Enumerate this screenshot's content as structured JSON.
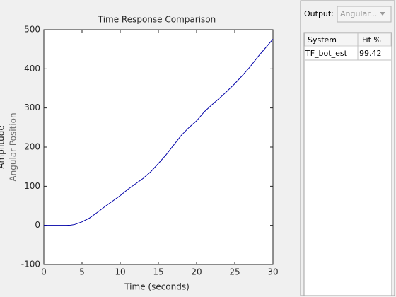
{
  "chart_data": {
    "type": "line",
    "title": "Time Response Comparison",
    "xlabel": "Time (seconds)",
    "ylabel": [
      "Amplitude",
      "Angular Position"
    ],
    "x": [
      0,
      1,
      2,
      3,
      3.5,
      4,
      5,
      6,
      7,
      8,
      9,
      10,
      11,
      12,
      13,
      14,
      15,
      16,
      17,
      18,
      19,
      20,
      21,
      22,
      23,
      24,
      25,
      26,
      27,
      28,
      29,
      30
    ],
    "series": [
      {
        "name": "TF_bot_est",
        "color": "#0000a8",
        "values": [
          0,
          0,
          0,
          0,
          0.5,
          2,
          9,
          19,
          33,
          48,
          62,
          76,
          92,
          106,
          120,
          137,
          158,
          180,
          205,
          230,
          250,
          267,
          290,
          308,
          325,
          343,
          362,
          383,
          405,
          430,
          453,
          476
        ]
      }
    ],
    "xlim": [
      0,
      30
    ],
    "xticks": [
      0,
      5,
      10,
      15,
      20,
      25,
      30
    ],
    "ylim": [
      -100,
      500
    ],
    "yticks": [
      -100,
      0,
      100,
      200,
      300,
      400,
      500
    ],
    "grid": false
  },
  "panel": {
    "output_label": "Output:",
    "output_value": "Angular...",
    "table": {
      "headers": [
        "System",
        "Fit %"
      ],
      "rows": [
        [
          "TF_bot_est",
          "99.42"
        ]
      ]
    }
  }
}
